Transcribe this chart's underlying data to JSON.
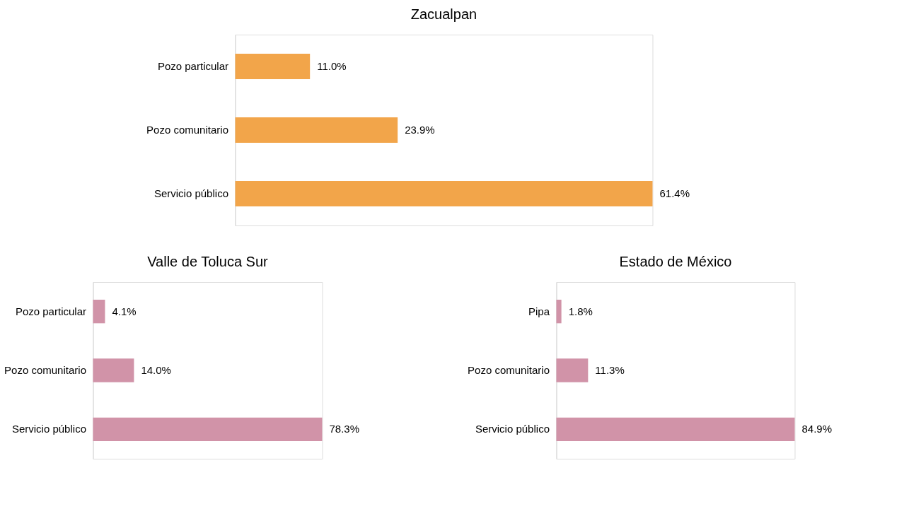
{
  "chart_data": [
    {
      "type": "bar",
      "orientation": "horizontal",
      "title": "Zacualpan",
      "categories": [
        "Pozo particular",
        "Pozo comunitario",
        "Servicio público"
      ],
      "values": [
        11.0,
        23.9,
        61.4
      ],
      "color": "#f2a54a",
      "value_labels": [
        "11.0%",
        "23.9%",
        "61.4%"
      ]
    },
    {
      "type": "bar",
      "orientation": "horizontal",
      "title": "Valle de Toluca Sur",
      "categories": [
        "Pozo particular",
        "Pozo comunitario",
        "Servicio público"
      ],
      "values": [
        4.1,
        14.0,
        78.3
      ],
      "color": "#d193a8",
      "value_labels": [
        "4.1%",
        "14.0%",
        "78.3%"
      ]
    },
    {
      "type": "bar",
      "orientation": "horizontal",
      "title": "Estado de México",
      "categories": [
        "Pipa",
        "Pozo comunitario",
        "Servicio público"
      ],
      "values": [
        1.8,
        11.3,
        84.9
      ],
      "color": "#d193a8",
      "value_labels": [
        "1.8%",
        "11.3%",
        "84.9%"
      ]
    }
  ]
}
